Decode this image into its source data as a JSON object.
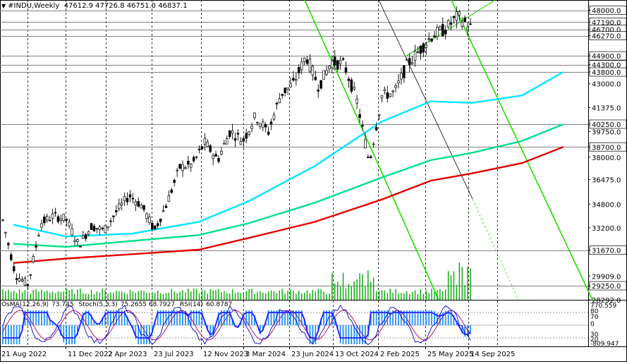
{
  "header": {
    "symbol": "#INDU,Weekly",
    "ohlc": "47612.9 47726.8 46751.0 46837.1"
  },
  "oscillator_header": {
    "osma": "OsMA(12,26,9)",
    "osma_value": "73.745",
    "stoch": "Stoch(5,3,3)",
    "stoch_values": "75.2655 68.7927",
    "rsi": "RSI(14)",
    "rsi_value": "60.8787"
  },
  "colors": {
    "ema_fast": "#00e5ff",
    "ema_mid": "#00e08a",
    "ema_slow": "#e00000",
    "channel": "#22dd00",
    "level_line": "#808080",
    "price_label_bg": "#ffffff",
    "candle": "#000000",
    "stoch_main": "#0000cc",
    "rsi": "#2020ff",
    "stoch_signal": "#a00060",
    "osma_hist": "#1e90ff"
  },
  "chart_data": {
    "type": "candlestick",
    "title": "#INDU,Weekly",
    "ylim": [
      28292,
      48700
    ],
    "price_axis_ticks": [
      "48000.0",
      "47190.0",
      "46700.0",
      "46270.0",
      "44900.0",
      "44300.0",
      "43800.0",
      "43000.0",
      "41375.0",
      "40250.0",
      "39750.0",
      "38700.0",
      "38000.0",
      "36475.0",
      "34800.0",
      "33200.0",
      "31670.0",
      "29909.0",
      "29250.0",
      "28292.0"
    ],
    "level_lines": [
      48000,
      47190,
      46700,
      46270,
      44900,
      44300,
      43800,
      40250,
      38700,
      31670,
      29250
    ],
    "time_labels": [
      "21 Aug 2022",
      "11 Dec 2022",
      "2 Apr 2023",
      "23 Jul 2023",
      "12 Nov 2023",
      "3 Mar 2024",
      "23 Jun 2024",
      "13 Oct 2024",
      "2 Feb 2025",
      "25 May 2025",
      "14 Sep 2025"
    ],
    "price_path": [
      [
        "21 Aug 2022",
        33700
      ],
      [
        "Sep 2022",
        30000
      ],
      [
        "Oct 2022",
        29300
      ],
      [
        "Nov 2022",
        33500
      ],
      [
        "11 Dec 2022",
        34000
      ],
      [
        "Jan 2023",
        33800
      ],
      [
        "Mar 2023",
        32000
      ],
      [
        "2 Apr 2023",
        33300
      ],
      [
        "May 2023",
        33000
      ],
      [
        "Jun 2023",
        34300
      ],
      [
        "23 Jul 2023",
        35400
      ],
      [
        "Aug 2023",
        34700
      ],
      [
        "Oct 2023",
        33000
      ],
      [
        "12 Nov 2023",
        34900
      ],
      [
        "Dec 2023",
        37300
      ],
      [
        "Jan 2024",
        37500
      ],
      [
        "3 Mar 2024",
        39000
      ],
      [
        "Apr 2024",
        37800
      ],
      [
        "May 2024",
        39800
      ],
      [
        "23 Jun 2024",
        39100
      ],
      [
        "Jul 2024",
        40800
      ],
      [
        "Aug 2024",
        39700
      ],
      [
        "Sep 2024",
        42300
      ],
      [
        "13 Oct 2024",
        43000
      ],
      [
        "Nov 2024",
        44900
      ],
      [
        "Dec 2024",
        42800
      ],
      [
        "Jan 2025",
        44500
      ],
      [
        "2 Feb 2025",
        44300
      ],
      [
        "Mar 2025",
        41900
      ],
      [
        "Apr 2025",
        37600
      ],
      [
        "May 2025",
        42200
      ],
      [
        "25 May 2025",
        42400
      ],
      [
        "Jul 2025",
        44300
      ],
      [
        "Aug 2025",
        45300
      ],
      [
        "14 Sep 2025",
        46300
      ],
      [
        "Oct 2025",
        46700
      ],
      [
        "Nov 2025",
        47600
      ],
      [
        "last",
        46837
      ]
    ],
    "series": [
      {
        "name": "",
        "kind": "ma",
        "color": "#00e5ff",
        "values": [
          [
            2022.58,
            33400
          ],
          [
            2022.9,
            32600
          ],
          [
            2023.3,
            32800
          ],
          [
            2023.7,
            33600
          ],
          [
            2024.0,
            35000
          ],
          [
            2024.4,
            37400
          ],
          [
            2024.8,
            40400
          ],
          [
            2025.1,
            41800
          ],
          [
            2025.35,
            41700
          ],
          [
            2025.65,
            42200
          ],
          [
            2025.9,
            43800
          ]
        ]
      },
      {
        "name": "",
        "kind": "ma",
        "color": "#00e08a",
        "values": [
          [
            2022.58,
            32100
          ],
          [
            2022.9,
            31900
          ],
          [
            2023.3,
            32300
          ],
          [
            2023.7,
            32700
          ],
          [
            2024.0,
            33500
          ],
          [
            2024.4,
            34900
          ],
          [
            2024.8,
            36600
          ],
          [
            2025.1,
            37800
          ],
          [
            2025.35,
            38300
          ],
          [
            2025.65,
            39100
          ],
          [
            2025.9,
            40250
          ]
        ]
      },
      {
        "name": "",
        "kind": "ma",
        "color": "#e00000",
        "values": [
          [
            2022.58,
            30800
          ],
          [
            2022.9,
            31100
          ],
          [
            2023.3,
            31400
          ],
          [
            2023.7,
            31700
          ],
          [
            2024.0,
            32500
          ],
          [
            2024.4,
            33600
          ],
          [
            2024.8,
            35100
          ],
          [
            2025.1,
            36400
          ],
          [
            2025.35,
            36900
          ],
          [
            2025.65,
            37600
          ],
          [
            2025.9,
            38700
          ]
        ]
      }
    ]
  }
}
